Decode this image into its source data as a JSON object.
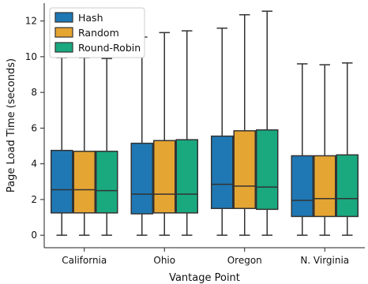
{
  "chart_data": {
    "type": "boxplot",
    "xlabel": "Vantage Point",
    "ylabel": "Page Load Time (seconds)",
    "categories": [
      "California",
      "Ohio",
      "Oregon",
      "N. Virginia"
    ],
    "ylim": [
      -0.7,
      13.0
    ],
    "yticks": [
      0,
      2,
      4,
      6,
      8,
      10,
      12
    ],
    "grid": false,
    "legend_position": "top-left",
    "series": [
      {
        "name": "Hash",
        "color": "#1f78b4",
        "boxes": [
          {
            "whislo": 0.0,
            "q1": 1.25,
            "med": 2.55,
            "q3": 4.75,
            "whishi": 9.95
          },
          {
            "whislo": 0.0,
            "q1": 1.2,
            "med": 2.3,
            "q3": 5.15,
            "whishi": 11.1
          },
          {
            "whislo": 0.0,
            "q1": 1.5,
            "med": 2.85,
            "q3": 5.55,
            "whishi": 11.6
          },
          {
            "whislo": 0.0,
            "q1": 1.05,
            "med": 1.95,
            "q3": 4.45,
            "whishi": 9.6
          }
        ]
      },
      {
        "name": "Random",
        "color": "#e5a532",
        "boxes": [
          {
            "whislo": 0.0,
            "q1": 1.25,
            "med": 2.55,
            "q3": 4.7,
            "whishi": 9.95
          },
          {
            "whislo": 0.0,
            "q1": 1.25,
            "med": 2.3,
            "q3": 5.3,
            "whishi": 11.35
          },
          {
            "whislo": 0.0,
            "q1": 1.5,
            "med": 2.75,
            "q3": 5.85,
            "whishi": 12.35
          },
          {
            "whislo": 0.0,
            "q1": 1.05,
            "med": 2.05,
            "q3": 4.45,
            "whishi": 9.55
          }
        ]
      },
      {
        "name": "Round-Robin",
        "color": "#1aa87f",
        "boxes": [
          {
            "whislo": 0.0,
            "q1": 1.25,
            "med": 2.5,
            "q3": 4.7,
            "whishi": 9.9
          },
          {
            "whislo": 0.0,
            "q1": 1.25,
            "med": 2.3,
            "q3": 5.35,
            "whishi": 11.45
          },
          {
            "whislo": 0.0,
            "q1": 1.45,
            "med": 2.7,
            "q3": 5.9,
            "whishi": 12.55
          },
          {
            "whislo": 0.0,
            "q1": 1.05,
            "med": 2.05,
            "q3": 4.5,
            "whishi": 9.65
          }
        ]
      }
    ]
  }
}
